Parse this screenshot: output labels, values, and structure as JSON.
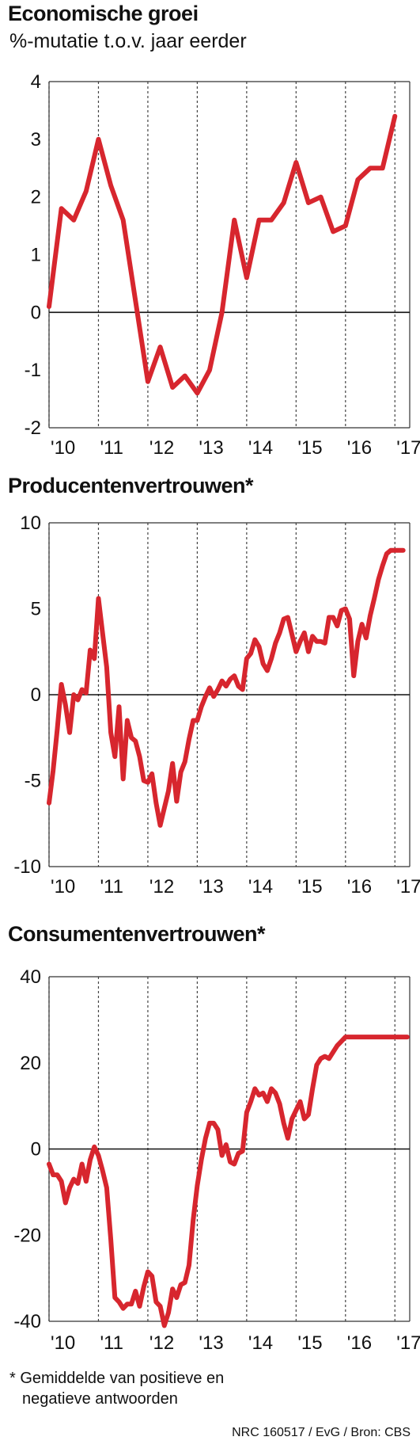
{
  "chart_data": [
    {
      "type": "line",
      "title": "Economische groei",
      "subtitle": "%-mutatie t.o.v. jaar eerder",
      "ylim": [
        -2,
        4
      ],
      "yticks": [
        "4",
        "3",
        "2",
        "1",
        "0",
        "-1",
        "-2"
      ],
      "yticks_values": [
        4,
        3,
        2,
        1,
        0,
        -1,
        -2
      ],
      "xticks": [
        "'10",
        "'11",
        "'12",
        "'13",
        "'14",
        "'15",
        "'16",
        "'17"
      ],
      "x_range": [
        2010,
        2017.3
      ],
      "grid": true,
      "series": [
        {
          "color": "#d7262e",
          "x": [
            2010.0,
            2010.25,
            2010.5,
            2010.75,
            2011.0,
            2011.25,
            2011.5,
            2011.75,
            2012.0,
            2012.25,
            2012.5,
            2012.75,
            2013.0,
            2013.25,
            2013.5,
            2013.75,
            2014.0,
            2014.25,
            2014.5,
            2014.75,
            2015.0,
            2015.25,
            2015.5,
            2015.75,
            2016.0,
            2016.25,
            2016.5,
            2016.75,
            2017.0
          ],
          "y": [
            0.1,
            1.8,
            1.6,
            2.1,
            3.0,
            2.2,
            1.6,
            0.2,
            -1.2,
            -0.6,
            -1.3,
            -1.1,
            -1.4,
            -1.0,
            0.0,
            1.6,
            0.6,
            1.6,
            1.6,
            1.9,
            2.6,
            1.9,
            2.0,
            1.4,
            1.5,
            2.3,
            2.5,
            2.5,
            3.4
          ]
        }
      ]
    },
    {
      "type": "line",
      "title": "Producentenvertrouwen*",
      "ylim": [
        -10,
        10
      ],
      "yticks": [
        "10",
        "5",
        "0",
        "-5",
        "-10"
      ],
      "yticks_values": [
        10,
        5,
        0,
        -5,
        -10
      ],
      "xticks": [
        "'10",
        "'11",
        "'12",
        "'13",
        "'14",
        "'15",
        "'16",
        "'17"
      ],
      "x_range": [
        2010,
        2017.3
      ],
      "grid": true,
      "series": [
        {
          "color": "#d7262e",
          "x": [
            2010.0,
            2010.083,
            2010.167,
            2010.25,
            2010.333,
            2010.417,
            2010.5,
            2010.583,
            2010.667,
            2010.75,
            2010.833,
            2010.917,
            2011.0,
            2011.083,
            2011.167,
            2011.25,
            2011.333,
            2011.417,
            2011.5,
            2011.583,
            2011.667,
            2011.75,
            2011.833,
            2011.917,
            2012.0,
            2012.083,
            2012.167,
            2012.25,
            2012.333,
            2012.417,
            2012.5,
            2012.583,
            2012.667,
            2012.75,
            2012.833,
            2012.917,
            2013.0,
            2013.083,
            2013.167,
            2013.25,
            2013.333,
            2013.417,
            2013.5,
            2013.583,
            2013.667,
            2013.75,
            2013.833,
            2013.917,
            2014.0,
            2014.083,
            2014.167,
            2014.25,
            2014.333,
            2014.417,
            2014.5,
            2014.583,
            2014.667,
            2014.75,
            2014.833,
            2014.917,
            2015.0,
            2015.083,
            2015.167,
            2015.25,
            2015.333,
            2015.417,
            2015.5,
            2015.583,
            2015.667,
            2015.75,
            2015.833,
            2015.917,
            2016.0,
            2016.083,
            2016.167,
            2016.25,
            2016.333,
            2016.417,
            2016.5,
            2016.583,
            2016.667,
            2016.75,
            2016.833,
            2016.917,
            2017.0,
            2017.083,
            2017.167
          ],
          "y": [
            -6.3,
            -4.4,
            -2.0,
            0.6,
            -0.6,
            -2.2,
            0.0,
            -0.3,
            0.3,
            0.1,
            2.6,
            2.1,
            5.6,
            3.6,
            1.6,
            -2.2,
            -3.6,
            -0.7,
            -4.9,
            -1.5,
            -2.5,
            -2.7,
            -3.6,
            -5.0,
            -5.1,
            -4.6,
            -6.3,
            -7.6,
            -6.6,
            -5.6,
            -4.0,
            -6.2,
            -4.5,
            -3.9,
            -2.6,
            -1.5,
            -1.5,
            -0.7,
            -0.1,
            0.4,
            -0.1,
            0.3,
            0.8,
            0.5,
            0.9,
            1.1,
            0.5,
            0.3,
            2.1,
            2.4,
            3.2,
            2.8,
            1.8,
            1.4,
            2.1,
            3.0,
            3.6,
            4.4,
            4.5,
            3.5,
            2.5,
            3.1,
            3.6,
            2.5,
            3.4,
            3.1,
            3.1,
            3.0,
            4.5,
            4.5,
            4.0,
            4.9,
            5.0,
            4.4,
            1.1,
            3.1,
            4.1,
            3.3,
            4.6,
            5.6,
            6.7,
            7.5,
            8.2,
            8.4,
            8.4,
            8.4,
            8.4
          ],
          "x_end": 2017.25
        }
      ]
    },
    {
      "type": "line",
      "title": "Consumentenvertrouwen*",
      "ylim": [
        -40,
        40
      ],
      "yticks": [
        "40",
        "20",
        "0",
        "-20",
        "-40"
      ],
      "yticks_values": [
        40,
        20,
        0,
        -20,
        -40
      ],
      "xticks": [
        "'10",
        "'11",
        "'12",
        "'13",
        "'14",
        "'15",
        "'16",
        "'17"
      ],
      "x_range": [
        2010,
        2017.3
      ],
      "grid": true,
      "series": [
        {
          "color": "#d7262e",
          "x": [
            2010.0,
            2010.083,
            2010.167,
            2010.25,
            2010.333,
            2010.417,
            2010.5,
            2010.583,
            2010.667,
            2010.75,
            2010.833,
            2010.917,
            2011.0,
            2011.083,
            2011.167,
            2011.25,
            2011.333,
            2011.417,
            2011.5,
            2011.583,
            2011.667,
            2011.75,
            2011.833,
            2011.917,
            2012.0,
            2012.083,
            2012.167,
            2012.25,
            2012.333,
            2012.417,
            2012.5,
            2012.583,
            2012.667,
            2012.75,
            2012.833,
            2012.917,
            2013.0,
            2013.083,
            2013.167,
            2013.25,
            2013.333,
            2013.417,
            2013.5,
            2013.583,
            2013.667,
            2013.75,
            2013.833,
            2013.917,
            2014.0,
            2014.083,
            2014.167,
            2014.25,
            2014.333,
            2014.417,
            2014.5,
            2014.583,
            2014.667,
            2014.75,
            2014.833,
            2014.917,
            2015.0,
            2015.083,
            2015.167,
            2015.25,
            2015.333,
            2015.417,
            2015.5,
            2015.583,
            2015.667,
            2015.75,
            2015.833,
            2015.917,
            2016.0,
            2016.083,
            2016.167,
            2016.25,
            2016.333,
            2016.417,
            2016.5,
            2016.583,
            2016.667,
            2016.75,
            2016.833,
            2016.917,
            2017.0,
            2017.083,
            2017.167,
            2017.25
          ],
          "y": [
            -3.5,
            -6.0,
            -6.0,
            -7.5,
            -12.5,
            -9.0,
            -7.0,
            -8.0,
            -3.5,
            -7.5,
            -2.5,
            0.5,
            -1.5,
            -5.0,
            -9.0,
            -21.0,
            -34.5,
            -35.5,
            -37.0,
            -36.0,
            -36.0,
            -33.0,
            -36.5,
            -32.0,
            -28.5,
            -29.5,
            -35.5,
            -36.5,
            -41.0,
            -38.0,
            -32.5,
            -34.5,
            -31.5,
            -31.0,
            -27.0,
            -16.5,
            -8.5,
            -2.5,
            2.5,
            6.0,
            6.0,
            4.5,
            -1.5,
            1.0,
            -3.0,
            -3.5,
            -1.0,
            -0.5,
            8.5,
            11.0,
            14.0,
            12.5,
            13.0,
            11.0,
            14.0,
            13.0,
            10.5,
            6.0,
            2.5,
            7.0,
            9.0,
            11.0,
            7.0,
            8.0,
            14.0,
            19.5,
            21.0,
            21.5,
            21.0,
            22.5,
            24.0,
            25.0,
            26.0,
            26.0,
            26.0,
            26.0,
            26.0,
            26.0,
            26.0,
            26.0,
            26.0,
            26.0,
            26.0,
            26.0,
            26.0,
            26.0,
            26.0,
            26.0
          ],
          "x_end": 2017.25
        }
      ]
    }
  ],
  "footnote": {
    "line1": "* Gemiddelde van positieve en",
    "line2": "negatieve antwoorden"
  },
  "credit": "NRC 160517 / EvG / Bron: CBS"
}
